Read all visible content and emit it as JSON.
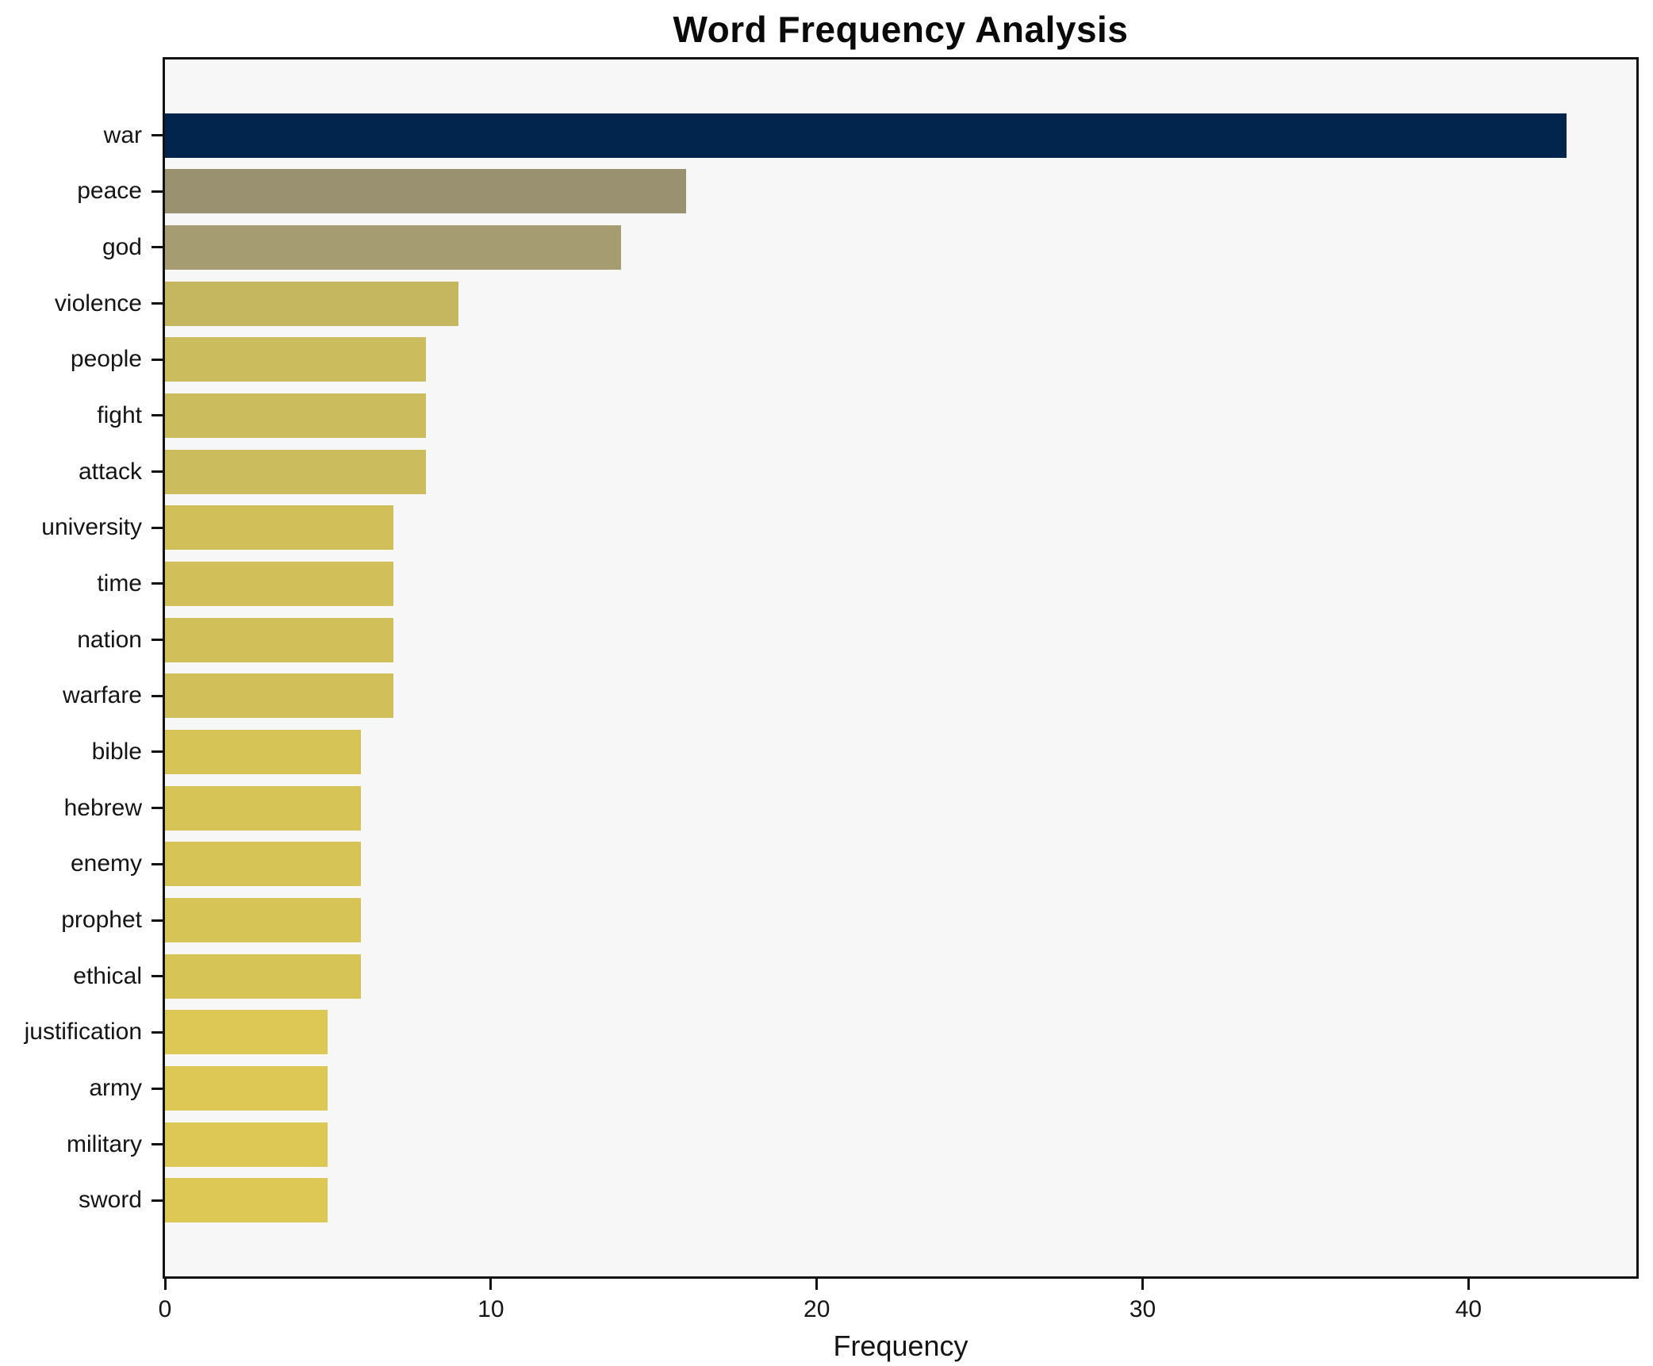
{
  "chart_data": {
    "type": "bar",
    "orientation": "horizontal",
    "title": "Word Frequency Analysis",
    "xlabel": "Frequency",
    "ylabel": "",
    "categories": [
      "war",
      "peace",
      "god",
      "violence",
      "people",
      "fight",
      "attack",
      "university",
      "time",
      "nation",
      "warfare",
      "bible",
      "hebrew",
      "enemy",
      "prophet",
      "ethical",
      "justification",
      "army",
      "military",
      "sword"
    ],
    "values": [
      43,
      16,
      14,
      9,
      8,
      8,
      8,
      7,
      7,
      7,
      7,
      6,
      6,
      6,
      6,
      6,
      5,
      5,
      5,
      5
    ],
    "bar_colors": [
      "#02254e",
      "#999170",
      "#a59d71",
      "#c5b75f",
      "#cbbc5d",
      "#cbbc5d",
      "#cbbc5d",
      "#d1c05a",
      "#d1c05a",
      "#d1c05a",
      "#d1c05a",
      "#d7c457",
      "#d7c457",
      "#d7c457",
      "#d7c457",
      "#d7c457",
      "#ddc855",
      "#ddc855",
      "#ddc855",
      "#ddc855"
    ],
    "xlim": [
      0,
      45.15
    ],
    "xticks": [
      0,
      10,
      20,
      30,
      40
    ],
    "grid": false,
    "legend": null,
    "plot_bg_color": "#f7f7f7",
    "figure_bg_color": "#ffffff",
    "spine_color": "#121212",
    "text_color": "#151515"
  }
}
